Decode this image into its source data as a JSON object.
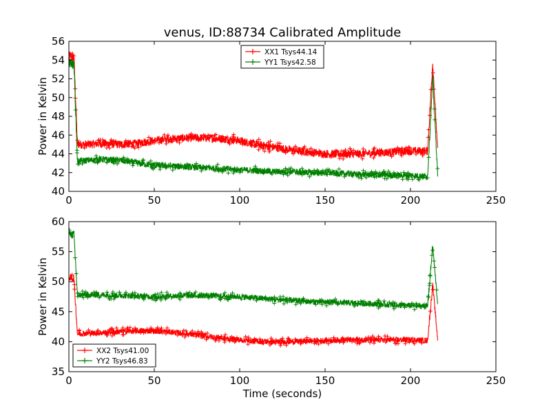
{
  "figure": {
    "title": "venus, ID:88734 Calibrated Amplitude"
  },
  "chart_data": [
    {
      "type": "line",
      "xlabel": "",
      "ylabel": "Power in Kelvin",
      "xlim": [
        0,
        250
      ],
      "ylim": [
        40,
        56
      ],
      "xticks": [
        0,
        50,
        100,
        150,
        200,
        250
      ],
      "yticks": [
        40,
        42,
        44,
        46,
        48,
        50,
        52,
        54,
        56
      ],
      "grid": false,
      "legend_position": "top-center",
      "series": [
        {
          "name": "XX1 Tsys44.14",
          "color": "#ff0000",
          "noise": 0.45,
          "x": [
            0,
            3,
            5,
            10,
            20,
            30,
            40,
            50,
            60,
            70,
            80,
            90,
            100,
            110,
            120,
            130,
            140,
            150,
            160,
            170,
            180,
            190,
            200,
            210,
            213,
            216
          ],
          "y": [
            54.5,
            54.3,
            45.0,
            45.0,
            45.1,
            45.0,
            45.1,
            45.4,
            45.6,
            45.7,
            45.7,
            45.6,
            45.4,
            45.0,
            44.7,
            44.4,
            44.2,
            44.0,
            44.0,
            44.0,
            44.1,
            44.2,
            44.3,
            44.3,
            53.8,
            44.0
          ]
        },
        {
          "name": "YY1 Tsys42.58",
          "color": "#008000",
          "noise": 0.35,
          "x": [
            0,
            3,
            5,
            10,
            20,
            30,
            40,
            50,
            60,
            70,
            80,
            90,
            100,
            110,
            120,
            130,
            140,
            150,
            160,
            170,
            180,
            190,
            200,
            210,
            213,
            216
          ],
          "y": [
            53.7,
            53.5,
            43.2,
            43.3,
            43.4,
            43.3,
            43.0,
            42.8,
            42.7,
            42.6,
            42.5,
            42.4,
            42.3,
            42.2,
            42.1,
            42.1,
            42.0,
            42.0,
            41.9,
            41.8,
            41.8,
            41.7,
            41.7,
            41.6,
            52.0,
            41.5
          ]
        }
      ]
    },
    {
      "type": "line",
      "xlabel": "Time (seconds)",
      "ylabel": "Power in Kelvin",
      "xlim": [
        0,
        250
      ],
      "ylim": [
        35,
        60
      ],
      "xticks": [
        0,
        50,
        100,
        150,
        200,
        250
      ],
      "yticks": [
        35,
        40,
        45,
        50,
        55,
        60
      ],
      "grid": false,
      "legend_position": "bottom-left",
      "series": [
        {
          "name": "XX2 Tsys41.00",
          "color": "#ff0000",
          "noise": 0.5,
          "x": [
            0,
            3,
            5,
            10,
            20,
            30,
            40,
            50,
            60,
            70,
            80,
            90,
            100,
            110,
            120,
            130,
            140,
            150,
            160,
            170,
            180,
            190,
            200,
            210,
            213,
            216
          ],
          "y": [
            50.7,
            50.5,
            41.3,
            41.4,
            41.5,
            41.7,
            41.8,
            41.8,
            41.6,
            41.3,
            40.9,
            40.6,
            40.3,
            40.1,
            40.0,
            40.0,
            40.1,
            40.2,
            40.3,
            40.3,
            40.3,
            40.3,
            40.3,
            40.2,
            49.5,
            40.1
          ]
        },
        {
          "name": "YY2 Tsys46.83",
          "color": "#008000",
          "noise": 0.5,
          "x": [
            0,
            3,
            5,
            10,
            20,
            30,
            40,
            50,
            60,
            70,
            80,
            90,
            100,
            110,
            120,
            130,
            140,
            150,
            160,
            170,
            180,
            190,
            200,
            210,
            213,
            216
          ],
          "y": [
            58.0,
            57.8,
            47.8,
            47.8,
            47.8,
            47.7,
            47.6,
            47.5,
            47.6,
            47.7,
            47.7,
            47.6,
            47.5,
            47.3,
            47.0,
            46.9,
            46.7,
            46.6,
            46.5,
            46.4,
            46.3,
            46.1,
            46.0,
            45.9,
            56.0,
            46.0
          ]
        }
      ]
    }
  ]
}
